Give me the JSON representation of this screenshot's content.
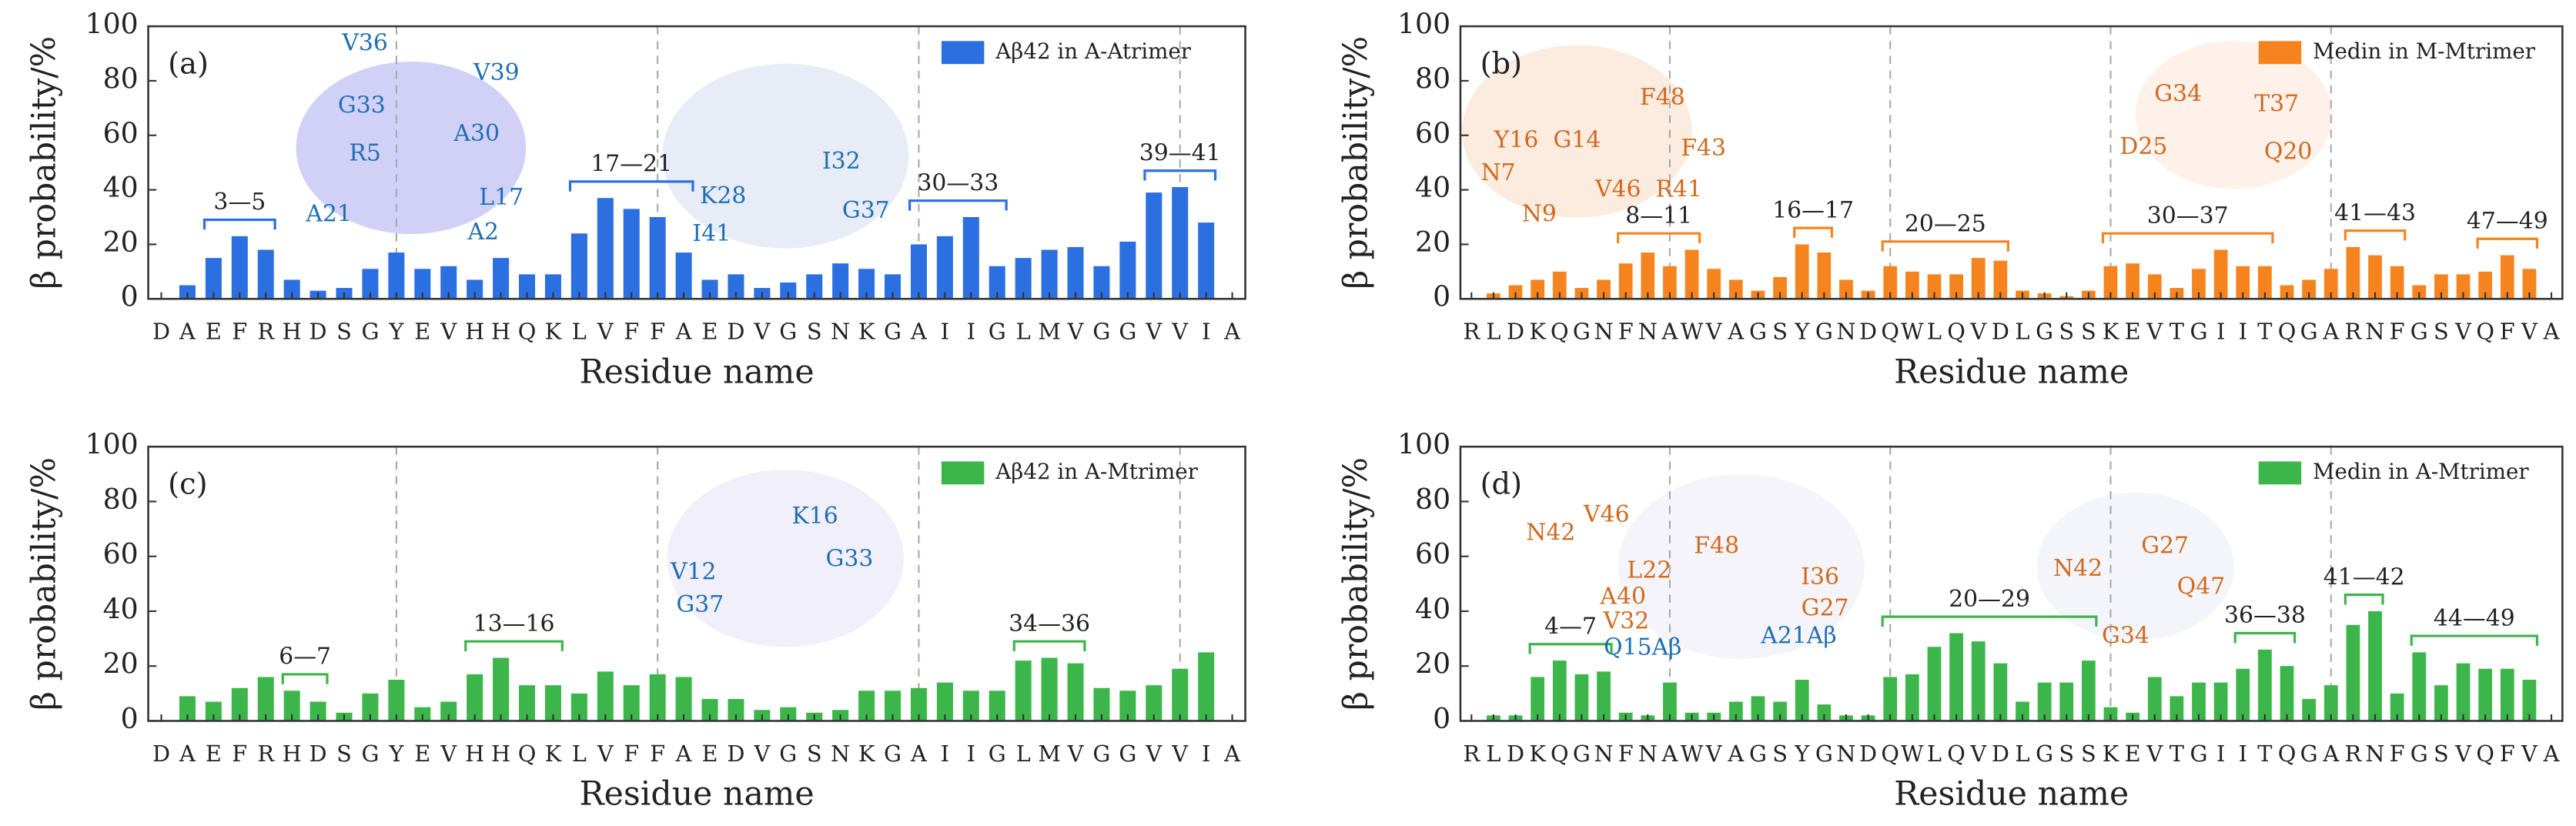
{
  "chart_data": [
    {
      "type": "bar",
      "label": "(a)",
      "xlabel": "Residue name",
      "ylabel": "β probability/%",
      "categories": [
        "D",
        "A",
        "E",
        "F",
        "R",
        "H",
        "D",
        "S",
        "G",
        "Y",
        "E",
        "V",
        "H",
        "H",
        "Q",
        "K",
        "L",
        "V",
        "F",
        "F",
        "A",
        "E",
        "D",
        "V",
        "G",
        "S",
        "N",
        "K",
        "G",
        "A",
        "I",
        "I",
        "G",
        "L",
        "M",
        "V",
        "G",
        "G",
        "V",
        "V",
        "I",
        "A"
      ],
      "series": [
        {
          "name": "Aβ42 in A-Atrimer",
          "color": "#2b6fe0",
          "values": [
            0,
            5,
            15,
            23,
            18,
            7,
            3,
            4,
            11,
            17,
            11,
            12,
            7,
            15,
            9,
            9,
            24,
            37,
            33,
            30,
            17,
            7,
            9,
            4,
            6,
            9,
            13,
            11,
            9,
            20,
            23,
            30,
            12,
            15,
            18,
            19,
            12,
            21,
            39,
            41,
            28,
            0
          ]
        }
      ],
      "ylim": [
        0,
        100
      ],
      "yticks": [
        0,
        20,
        40,
        60,
        80,
        100
      ],
      "vlines": [
        10,
        20,
        30,
        40
      ],
      "brackets": [
        {
          "label": "3—5",
          "from": 3,
          "to": 5
        },
        {
          "label": "17—21",
          "from": 17,
          "to": 21
        },
        {
          "label": "30—33",
          "from": 30,
          "to": 33
        },
        {
          "label": "39—41",
          "from": 39,
          "to": 41
        }
      ],
      "inset_labels": [
        {
          "text": "V36",
          "color": "#1f6fb5"
        },
        {
          "text": "V39",
          "color": "#1f6fb5"
        },
        {
          "text": "G33",
          "color": "#1f6fb5"
        },
        {
          "text": "A30",
          "color": "#1f6fb5"
        },
        {
          "text": "R5",
          "color": "#1f6fb5"
        },
        {
          "text": "L17",
          "color": "#1f6fb5"
        },
        {
          "text": "A21",
          "color": "#1f6fb5"
        },
        {
          "text": "A2",
          "color": "#1f6fb5"
        },
        {
          "text": "K28",
          "color": "#1f6fb5"
        },
        {
          "text": "I32",
          "color": "#1f6fb5"
        },
        {
          "text": "I41",
          "color": "#1f6fb5"
        },
        {
          "text": "G37",
          "color": "#1f6fb5"
        }
      ]
    },
    {
      "type": "bar",
      "label": "(b)",
      "xlabel": "Residue name",
      "ylabel": "β probability/%",
      "categories": [
        "R",
        "L",
        "D",
        "K",
        "Q",
        "G",
        "N",
        "F",
        "N",
        "A",
        "W",
        "V",
        "A",
        "G",
        "S",
        "Y",
        "G",
        "N",
        "D",
        "Q",
        "W",
        "L",
        "Q",
        "V",
        "D",
        "L",
        "G",
        "S",
        "S",
        "K",
        "E",
        "V",
        "T",
        "G",
        "I",
        "I",
        "T",
        "Q",
        "G",
        "A",
        "R",
        "N",
        "F",
        "G",
        "S",
        "V",
        "Q",
        "F",
        "V",
        "A"
      ],
      "series": [
        {
          "name": "Medin in M-Mtrimer",
          "color": "#f5841f",
          "values": [
            0,
            2,
            5,
            7,
            10,
            4,
            7,
            13,
            17,
            12,
            18,
            11,
            7,
            3,
            8,
            20,
            17,
            7,
            3,
            12,
            10,
            9,
            9,
            15,
            14,
            3,
            2,
            1,
            3,
            12,
            13,
            9,
            4,
            11,
            18,
            12,
            12,
            5,
            7,
            11,
            19,
            16,
            12,
            5,
            9,
            9,
            10,
            16,
            11,
            0
          ]
        }
      ],
      "ylim": [
        0,
        100
      ],
      "yticks": [
        0,
        20,
        40,
        60,
        80,
        100
      ],
      "vlines": [
        10,
        20,
        30,
        40
      ],
      "brackets": [
        {
          "label": "8—11",
          "from": 8,
          "to": 11
        },
        {
          "label": "16—17",
          "from": 16,
          "to": 17
        },
        {
          "label": "20—25",
          "from": 20,
          "to": 25
        },
        {
          "label": "30—37",
          "from": 30,
          "to": 37
        },
        {
          "label": "41—43",
          "from": 41,
          "to": 43
        },
        {
          "label": "47—49",
          "from": 47,
          "to": 49
        }
      ],
      "inset_labels": [
        {
          "text": "F48",
          "color": "#d2691e"
        },
        {
          "text": "Y16",
          "color": "#d2691e"
        },
        {
          "text": "G14",
          "color": "#d2691e"
        },
        {
          "text": "F43",
          "color": "#d2691e"
        },
        {
          "text": "N7",
          "color": "#d2691e"
        },
        {
          "text": "V46",
          "color": "#d2691e"
        },
        {
          "text": "R41",
          "color": "#d2691e"
        },
        {
          "text": "N9",
          "color": "#d2691e"
        },
        {
          "text": "G34",
          "color": "#d2691e"
        },
        {
          "text": "T37",
          "color": "#d2691e"
        },
        {
          "text": "D25",
          "color": "#d2691e"
        },
        {
          "text": "Q20",
          "color": "#d2691e"
        }
      ]
    },
    {
      "type": "bar",
      "label": "(c)",
      "xlabel": "Residue name",
      "ylabel": "β probability/%",
      "categories": [
        "D",
        "A",
        "E",
        "F",
        "R",
        "H",
        "D",
        "S",
        "G",
        "Y",
        "E",
        "V",
        "H",
        "H",
        "Q",
        "K",
        "L",
        "V",
        "F",
        "F",
        "A",
        "E",
        "D",
        "V",
        "G",
        "S",
        "N",
        "K",
        "G",
        "A",
        "I",
        "I",
        "G",
        "L",
        "M",
        "V",
        "G",
        "G",
        "V",
        "V",
        "I",
        "A"
      ],
      "series": [
        {
          "name": "Aβ42 in A-Mtrimer",
          "color": "#3cb54a",
          "values": [
            0,
            9,
            7,
            12,
            16,
            11,
            7,
            3,
            10,
            15,
            5,
            7,
            17,
            23,
            13,
            13,
            10,
            18,
            13,
            17,
            16,
            8,
            8,
            4,
            5,
            3,
            4,
            11,
            11,
            12,
            14,
            11,
            11,
            22,
            23,
            21,
            12,
            11,
            13,
            19,
            25,
            0
          ]
        }
      ],
      "ylim": [
        0,
        100
      ],
      "yticks": [
        0,
        20,
        40,
        60,
        80,
        100
      ],
      "vlines": [
        10,
        20,
        30,
        40
      ],
      "brackets": [
        {
          "label": "6—7",
          "from": 6,
          "to": 7
        },
        {
          "label": "13—16",
          "from": 13,
          "to": 16
        },
        {
          "label": "34—36",
          "from": 34,
          "to": 36
        }
      ],
      "inset_labels": [
        {
          "text": "K16",
          "color": "#1f6fb5"
        },
        {
          "text": "V12",
          "color": "#1f6fb5"
        },
        {
          "text": "G33",
          "color": "#1f6fb5"
        },
        {
          "text": "G37",
          "color": "#1f6fb5"
        }
      ]
    },
    {
      "type": "bar",
      "label": "(d)",
      "xlabel": "Residue name",
      "ylabel": "β probability/%",
      "categories": [
        "R",
        "L",
        "D",
        "K",
        "Q",
        "G",
        "N",
        "F",
        "N",
        "A",
        "W",
        "V",
        "A",
        "G",
        "S",
        "Y",
        "G",
        "N",
        "D",
        "Q",
        "W",
        "L",
        "Q",
        "V",
        "D",
        "L",
        "G",
        "S",
        "S",
        "K",
        "E",
        "V",
        "T",
        "G",
        "I",
        "I",
        "T",
        "Q",
        "G",
        "A",
        "R",
        "N",
        "F",
        "G",
        "S",
        "V",
        "Q",
        "F",
        "V",
        "A"
      ],
      "series": [
        {
          "name": "Medin in A-Mtrimer",
          "color": "#3cb54a",
          "values": [
            0,
            2,
            2,
            16,
            22,
            17,
            18,
            3,
            2,
            14,
            3,
            3,
            7,
            9,
            7,
            15,
            6,
            2,
            2,
            16,
            17,
            27,
            32,
            29,
            21,
            7,
            14,
            14,
            22,
            5,
            3,
            16,
            9,
            14,
            14,
            19,
            26,
            20,
            8,
            13,
            35,
            40,
            10,
            25,
            13,
            21,
            19,
            19,
            15,
            0
          ]
        }
      ],
      "ylim": [
        0,
        100
      ],
      "yticks": [
        0,
        20,
        40,
        60,
        80,
        100
      ],
      "vlines": [
        10,
        20,
        30,
        40
      ],
      "brackets": [
        {
          "label": "4—7",
          "from": 4,
          "to": 7
        },
        {
          "label": "20—29",
          "from": 20,
          "to": 29
        },
        {
          "label": "36—38",
          "from": 36,
          "to": 38
        },
        {
          "label": "41—42",
          "from": 41,
          "to": 42
        },
        {
          "label": "44—49",
          "from": 44,
          "to": 49
        }
      ],
      "inset_labels": [
        {
          "text": "V46",
          "color": "#d2691e"
        },
        {
          "text": "N42",
          "color": "#d2691e"
        },
        {
          "text": "F48",
          "color": "#d2691e"
        },
        {
          "text": "L22",
          "color": "#d2691e"
        },
        {
          "text": "I36",
          "color": "#d2691e"
        },
        {
          "text": "A40",
          "color": "#d2691e"
        },
        {
          "text": "G27",
          "color": "#d2691e"
        },
        {
          "text": "V32",
          "color": "#d2691e"
        },
        {
          "text": "Q15Aβ",
          "color": "#1f6fb5"
        },
        {
          "text": "A21Aβ",
          "color": "#1f6fb5"
        },
        {
          "text": "G27",
          "color": "#d2691e"
        },
        {
          "text": "N42",
          "color": "#d2691e"
        },
        {
          "text": "Q47",
          "color": "#d2691e"
        },
        {
          "text": "G34",
          "color": "#d2691e"
        }
      ]
    }
  ]
}
